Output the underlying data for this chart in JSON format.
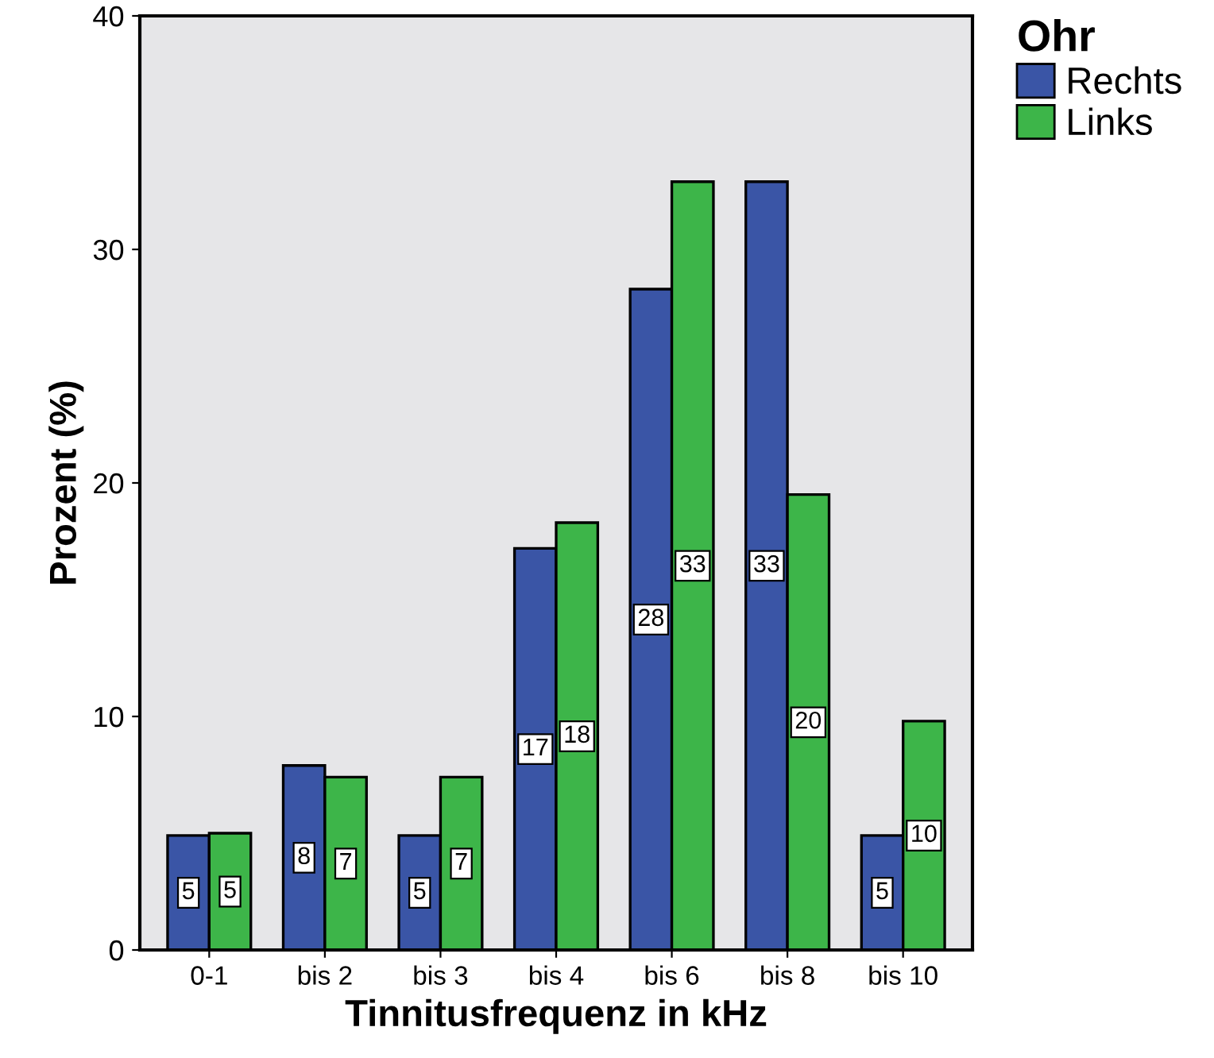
{
  "chart_data": {
    "type": "bar",
    "xlabel": "Tinnitusfrequenz in kHz",
    "ylabel": "Prozent (%)",
    "legend_title": "Ohr",
    "categories": [
      "0-1",
      "bis 2",
      "bis 3",
      "bis 4",
      "bis 6",
      "bis 8",
      "bis 10"
    ],
    "series": [
      {
        "name": "Rechts",
        "color": "#3a55a6",
        "values": [
          4.9,
          7.9,
          4.9,
          17.2,
          28.3,
          32.9,
          4.9
        ],
        "value_labels": [
          "5",
          "8",
          "5",
          "17",
          "28",
          "33",
          "5"
        ]
      },
      {
        "name": "Links",
        "color": "#3db549",
        "values": [
          5.0,
          7.4,
          7.4,
          18.3,
          32.9,
          19.5,
          9.8
        ],
        "value_labels": [
          "5",
          "7",
          "7",
          "18",
          "33",
          "20",
          "10"
        ]
      }
    ],
    "ylim": [
      0,
      40
    ],
    "yticks": [
      0,
      10,
      20,
      30,
      40
    ],
    "grid": false,
    "legend": "top right"
  }
}
